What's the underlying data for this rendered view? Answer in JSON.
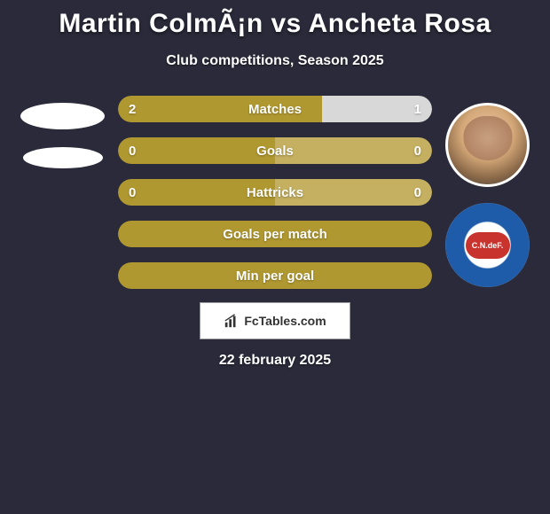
{
  "title": "Martin ColmÃ¡n vs Ancheta Rosa",
  "subtitle": "Club competitions, Season 2025",
  "colors": {
    "background": "#2a2a3a",
    "player1_bar": "#b09830",
    "player2_bar": "#d8d8d8",
    "player2_bar_alt": "#c4b060",
    "neutral_bar": "#b09830",
    "text": "#ffffff"
  },
  "stats": [
    {
      "label": "Matches",
      "left_value": "2",
      "right_value": "1",
      "left_pct": 65,
      "right_pct": 35,
      "left_color": "#b09830",
      "right_color": "#d8d8d8"
    },
    {
      "label": "Goals",
      "left_value": "0",
      "right_value": "0",
      "left_pct": 50,
      "right_pct": 50,
      "left_color": "#b09830",
      "right_color": "#c4b060"
    },
    {
      "label": "Hattricks",
      "left_value": "0",
      "right_value": "0",
      "left_pct": 50,
      "right_pct": 50,
      "left_color": "#b09830",
      "right_color": "#c4b060"
    },
    {
      "label": "Goals per match",
      "left_value": "",
      "right_value": "",
      "left_pct": 100,
      "right_pct": 0,
      "left_color": "#b09830",
      "right_color": "#b09830"
    },
    {
      "label": "Min per goal",
      "left_value": "",
      "right_value": "",
      "left_pct": 100,
      "right_pct": 0,
      "left_color": "#b09830",
      "right_color": "#b09830"
    }
  ],
  "attribution": "FcTables.com",
  "date": "22 february 2025",
  "club_logo_text": "C.N.deF."
}
